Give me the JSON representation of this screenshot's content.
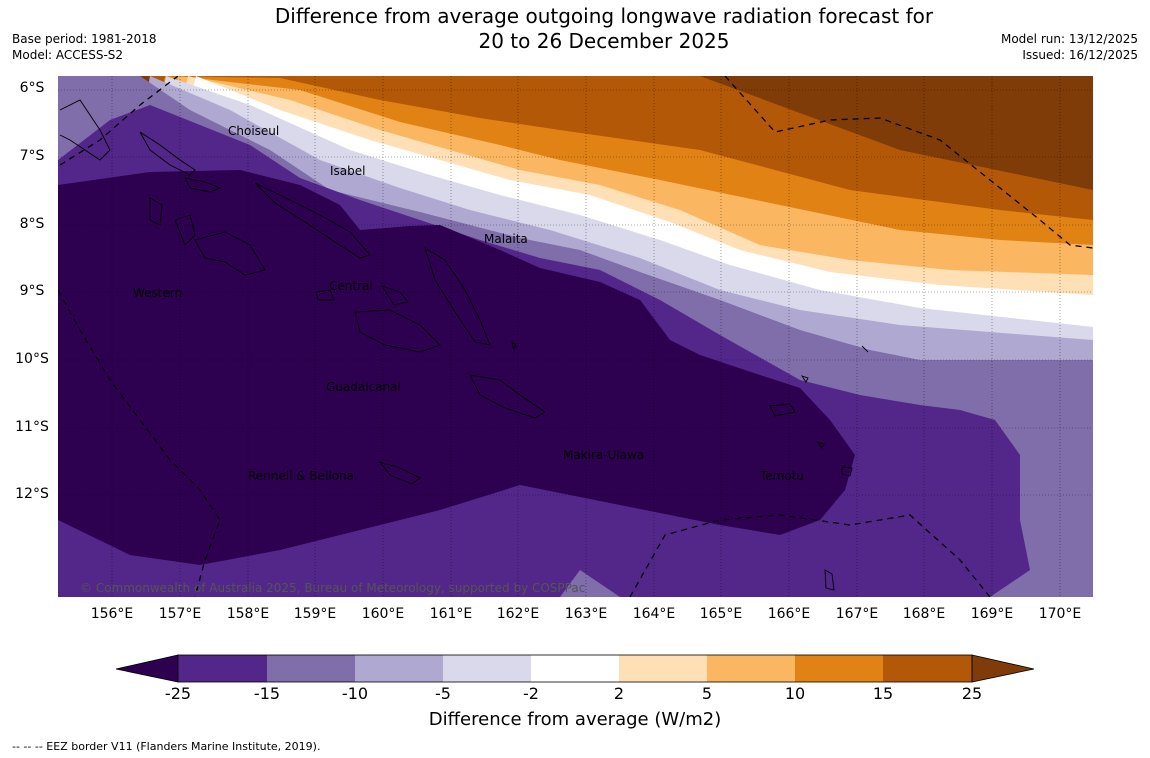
{
  "title_line1": "Difference from average outgoing longwave radiation forecast for",
  "title_line2": "20 to 26 December 2025",
  "base_period": "Base period: 1981-2018",
  "model": "Model: ACCESS-S2",
  "model_run": "Model run: 13/12/2025",
  "issued": "Issued: 16/12/2025",
  "lat_labels": [
    "6°S",
    "7°S",
    "8°S",
    "9°S",
    "10°S",
    "11°S",
    "12°S"
  ],
  "lon_labels": [
    "156°E",
    "157°E",
    "158°E",
    "159°E",
    "160°E",
    "161°E",
    "162°E",
    "163°E",
    "164°E",
    "165°E",
    "166°E",
    "167°E",
    "168°E",
    "169°E",
    "170°E"
  ],
  "regions": [
    "Choiseul",
    "Isabel",
    "Malaita",
    "Western",
    "Central",
    "Guadalcanal",
    "Makira-Ulawa",
    "Rennell & Bellona",
    "Temotu"
  ],
  "copyright": "© Commonwealth of Australia 2025, Bureau of Meteorology, supported by COSPPac",
  "colorbar": {
    "ticks": [
      "-25",
      "-15",
      "-10",
      "-5",
      "-2",
      "2",
      "5",
      "10",
      "15",
      "25"
    ],
    "colors": [
      "#2d0050",
      "#532689",
      "#7f6eaa",
      "#afa9d2",
      "#d9d9eb",
      "#ffffff",
      "#ffdfb5",
      "#fab660",
      "#e08214",
      "#b35806",
      "#7f3b08"
    ],
    "title": "Difference from average (W/m2)"
  },
  "legend_note": "--  --  -- EEZ border V11 (Flanders Marine Institute, 2019)."
}
